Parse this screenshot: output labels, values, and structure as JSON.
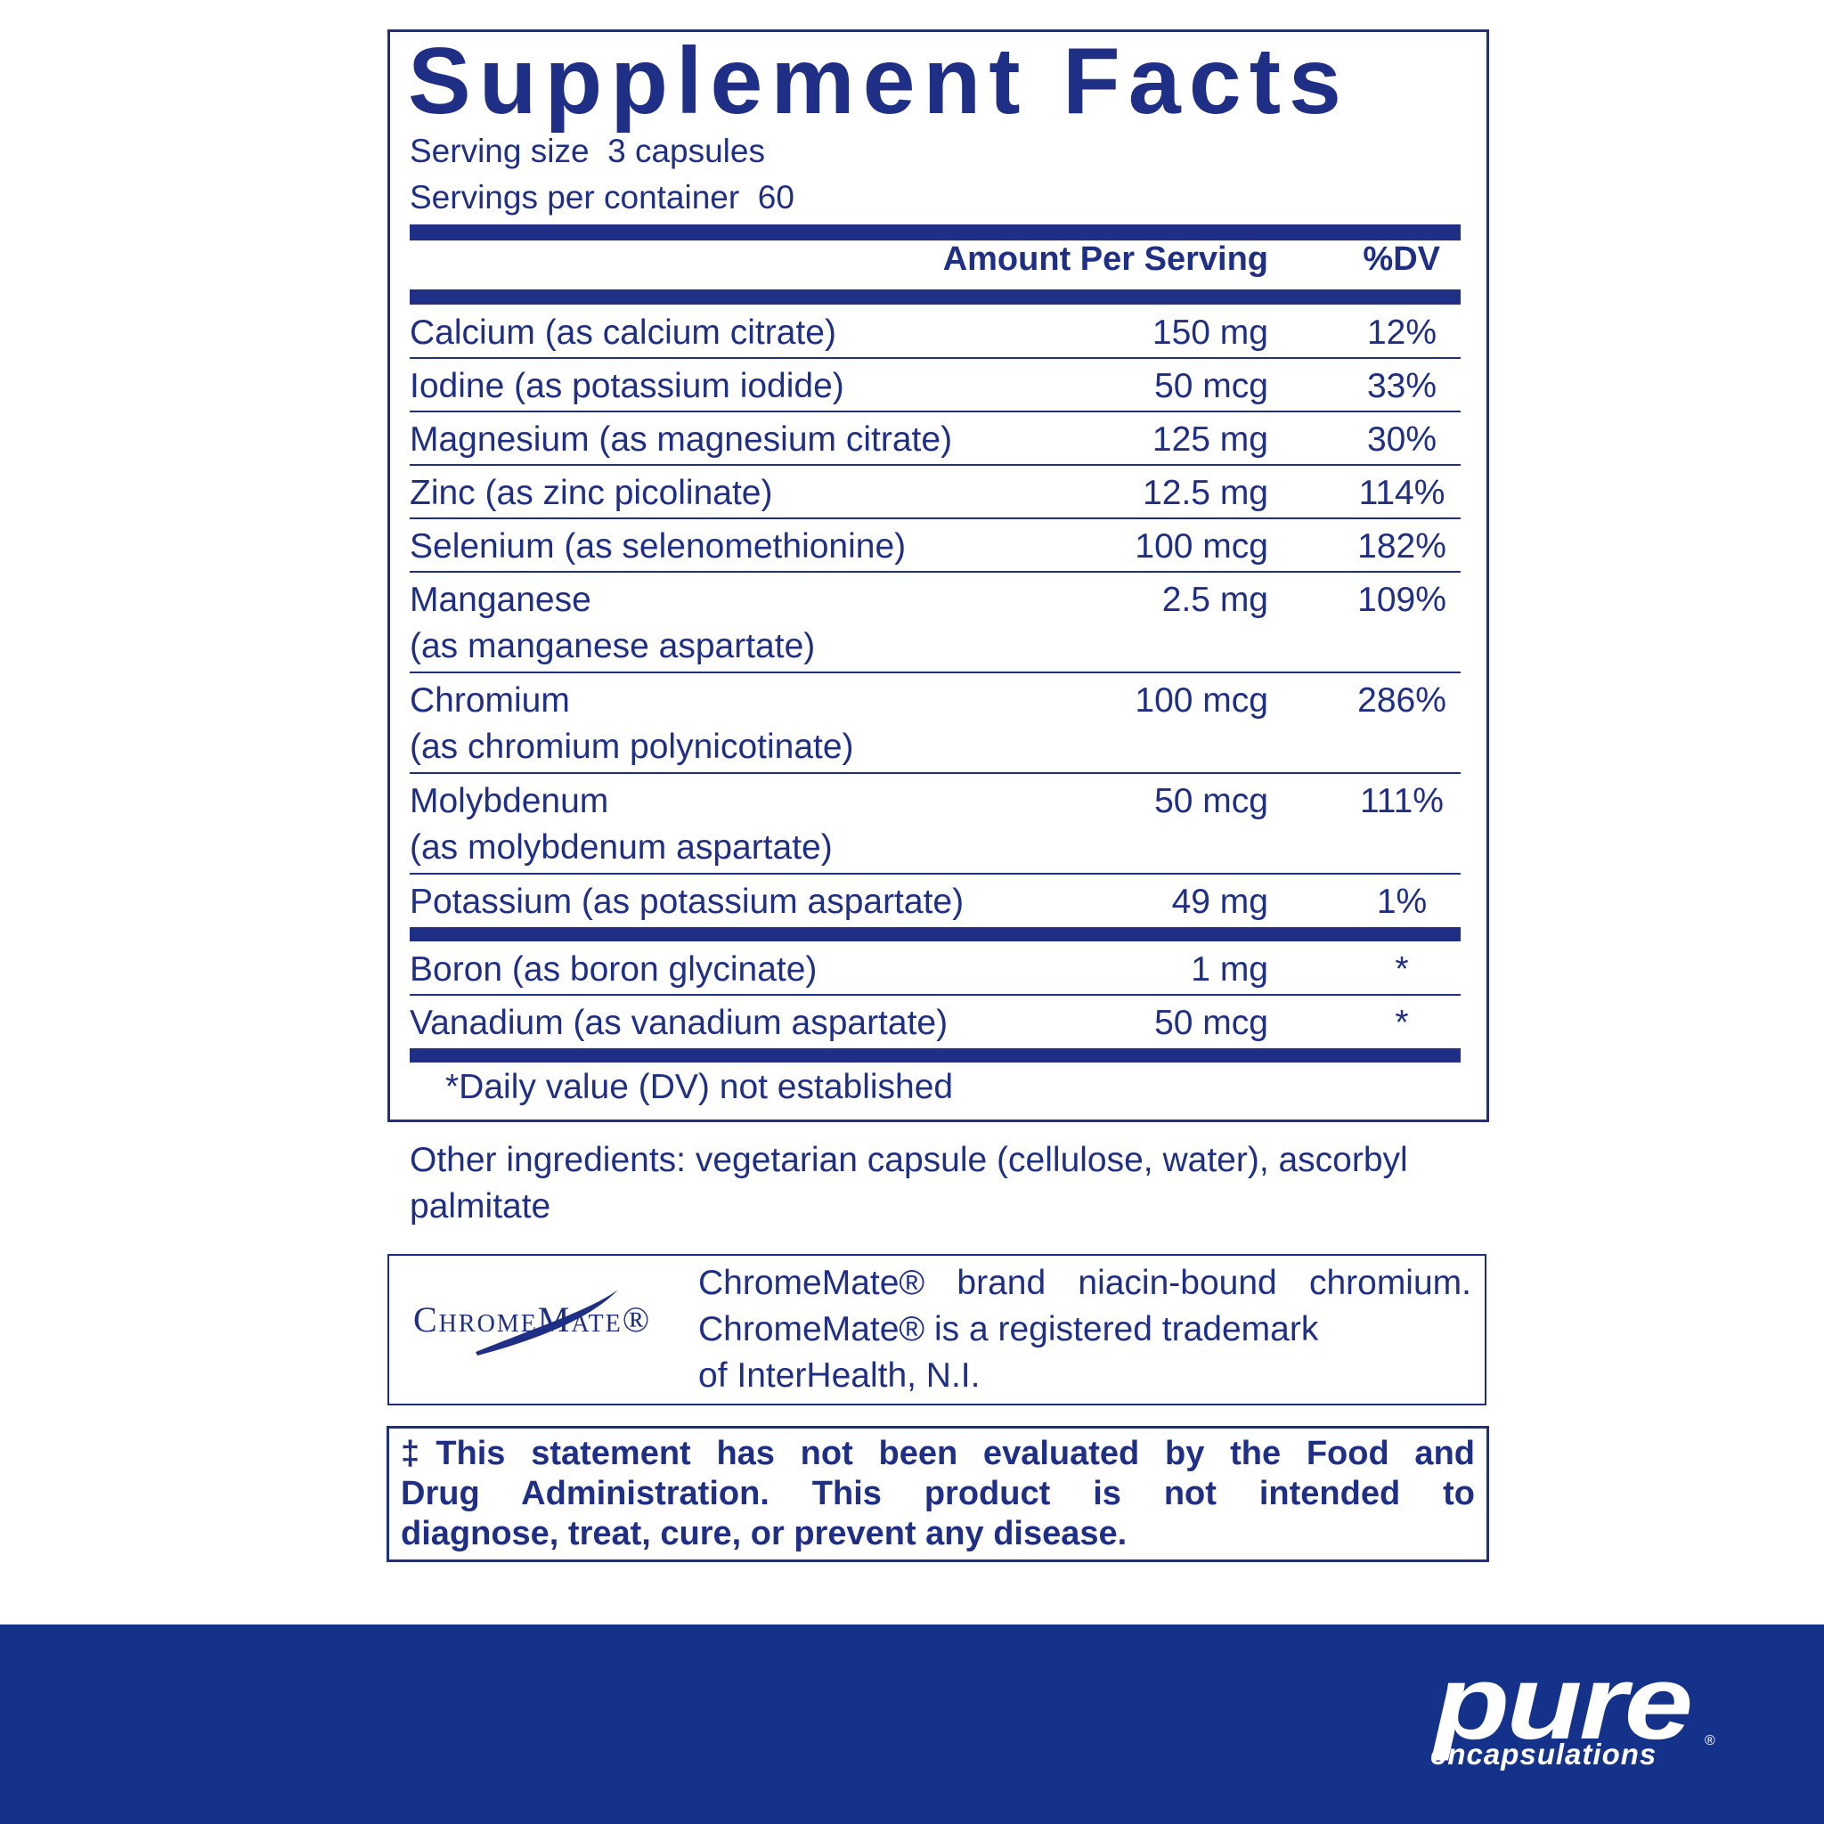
{
  "header": {
    "title": "Supplement Facts",
    "serving_size": "Serving size  3 capsules",
    "servings_per_container": "Servings per container  60"
  },
  "table": {
    "columns": [
      "Amount Per Serving",
      "%DV"
    ],
    "sections": [
      [
        {
          "name": [
            "Calcium (as calcium citrate)"
          ],
          "amount": "150 mg",
          "dv": "12%"
        },
        {
          "name": [
            "Iodine (as potassium iodide)"
          ],
          "amount": "50 mcg",
          "dv": "33%"
        },
        {
          "name": [
            "Magnesium (as magnesium citrate)"
          ],
          "amount": "125 mg",
          "dv": "30%"
        },
        {
          "name": [
            "Zinc (as zinc picolinate)"
          ],
          "amount": "12.5 mg",
          "dv": "114%"
        },
        {
          "name": [
            "Selenium (as selenomethionine)"
          ],
          "amount": "100 mcg",
          "dv": "182%"
        },
        {
          "name": [
            "Manganese",
            "(as manganese aspartate)"
          ],
          "amount": "2.5 mg",
          "dv": "109%"
        },
        {
          "name": [
            "Chromium",
            "(as chromium polynicotinate)"
          ],
          "amount": "100 mcg",
          "dv": "286%"
        },
        {
          "name": [
            "Molybdenum",
            "(as molybdenum aspartate)"
          ],
          "amount": "50 mcg",
          "dv": "111%"
        },
        {
          "name": [
            "Potassium (as potassium aspartate)"
          ],
          "amount": "49 mg",
          "dv": "1%"
        }
      ],
      [
        {
          "name": [
            "Boron (as boron glycinate)"
          ],
          "amount": "1 mg",
          "dv": "*"
        },
        {
          "name": [
            "Vanadium (as vanadium aspartate)"
          ],
          "amount": "50 mcg",
          "dv": "*"
        }
      ]
    ],
    "footnote": "*Daily value (DV) not established"
  },
  "other_ingredients": [
    "Other ingredients: vegetarian capsule (cellulose, water), ascorbyl",
    "palmitate"
  ],
  "trademark": {
    "logo": "ChromeMate®",
    "text": [
      "ChromeMate® brand niacin-bound chromium.",
      "ChromeMate® is a registered trademark",
      "of InterHealth, N.I."
    ]
  },
  "disclaimer": [
    "‡This statement has not been evaluated by the Food and",
    "Drug Administration. This product is not intended to",
    "diagnose, treat, cure, or prevent any disease."
  ],
  "brand": {
    "name": "pure",
    "tagline": "encapsulations",
    "mark": "®"
  }
}
